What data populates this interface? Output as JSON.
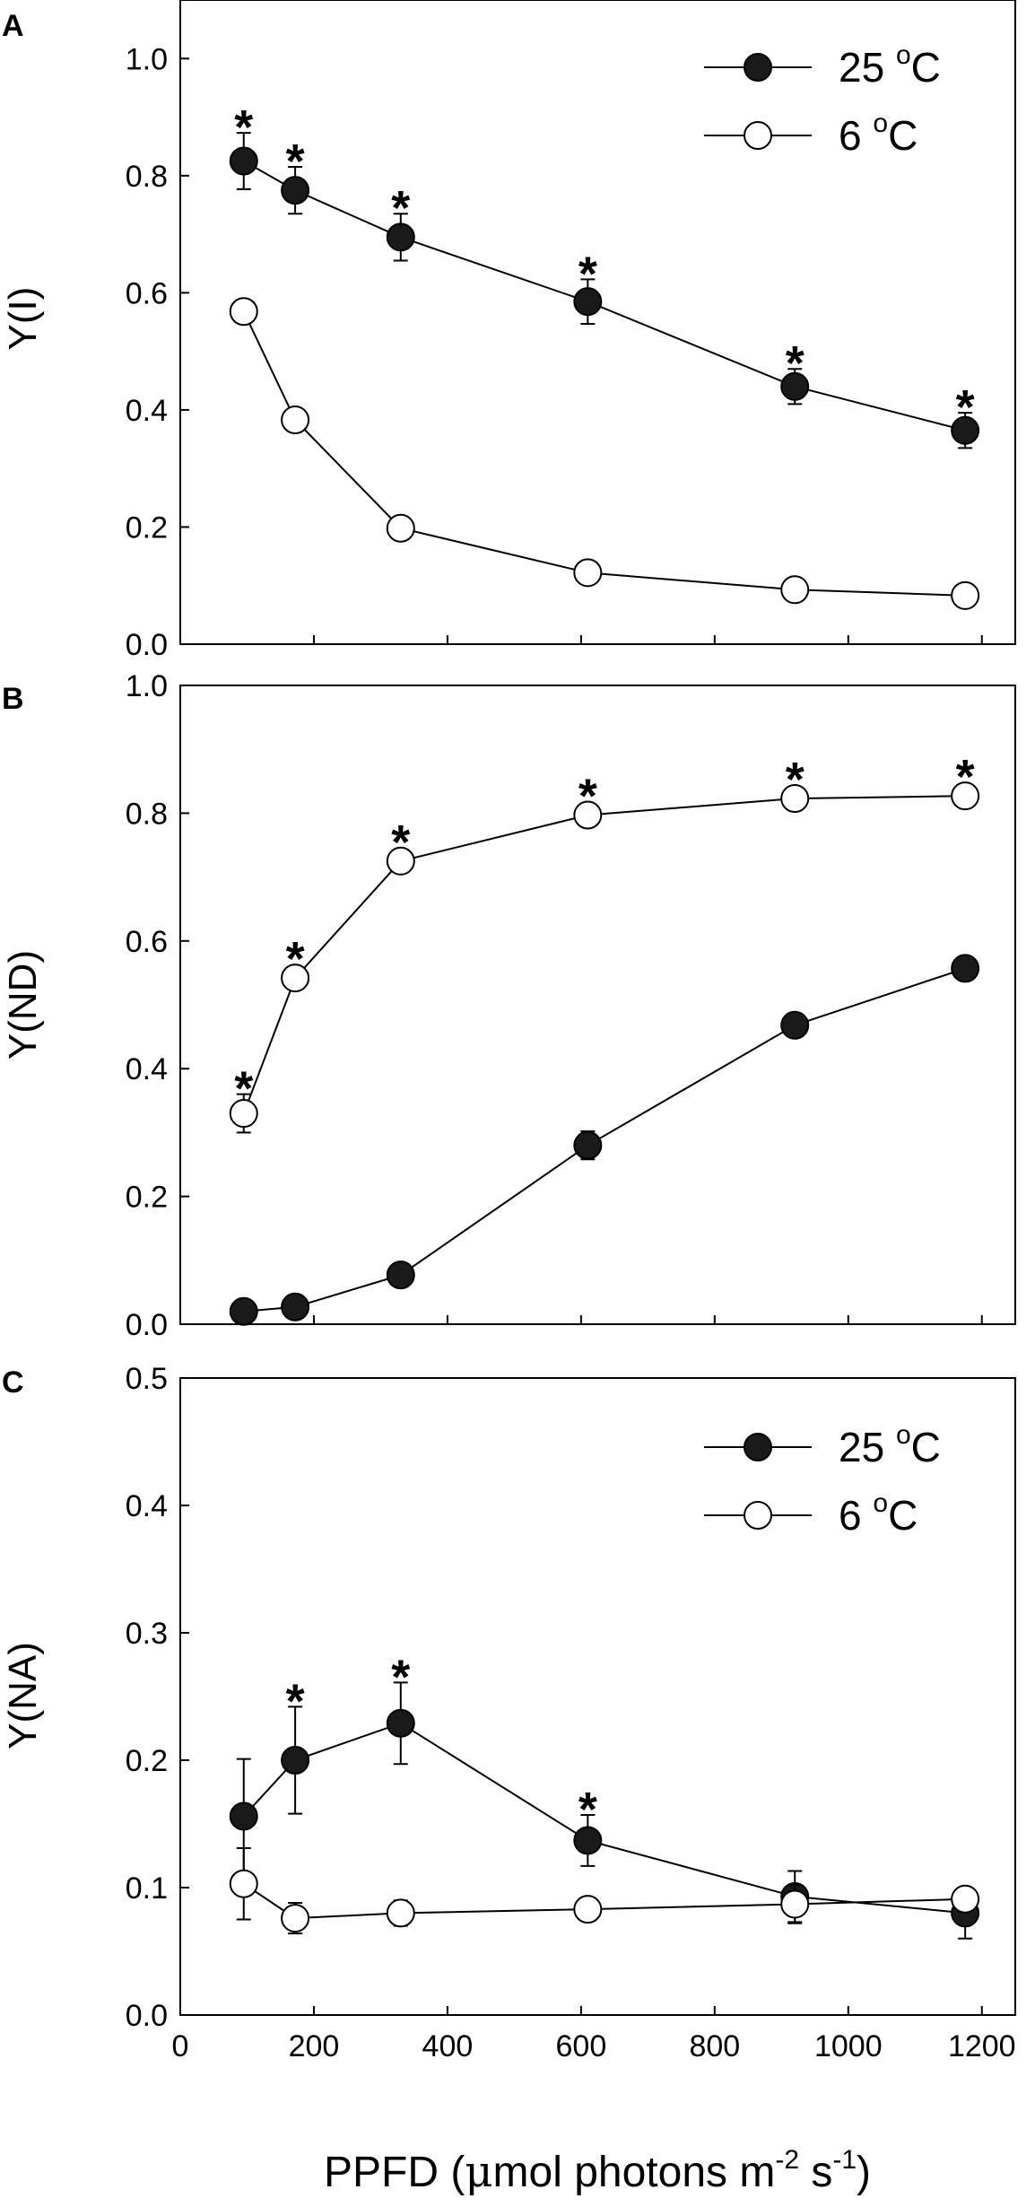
{
  "figure": {
    "xlabel_main": "PPFD (",
    "xlabel_mu": "μ",
    "xlabel_mid": "mol photons m",
    "xlabel_sup1": "-2",
    "xlabel_s": " s",
    "xlabel_sup2": "-1",
    "xlabel_close": ")",
    "xticks": [
      "0",
      "200",
      "400",
      "600",
      "800",
      "1000",
      "1200"
    ]
  },
  "chart_data": [
    {
      "type": "line",
      "panel_label": "A",
      "ylabel": "Y(I)",
      "xlim": [
        0,
        1250
      ],
      "ylim": [
        0,
        1.1
      ],
      "yticks": [
        "0.0",
        "0.2",
        "0.4",
        "0.6",
        "0.8",
        "1.0"
      ],
      "legend": {
        "placement": "top-right",
        "entries": [
          {
            "text": "25 ",
            "sup": "o",
            "unit": "C",
            "marker": "filled"
          },
          {
            "text": "6 ",
            "sup": "o",
            "unit": "C",
            "marker": "open"
          }
        ]
      },
      "x": [
        95,
        172,
        330,
        610,
        920,
        1175
      ],
      "series": [
        {
          "name": "25 °C",
          "marker": "filled",
          "values": [
            0.825,
            0.775,
            0.695,
            0.585,
            0.44,
            0.365
          ],
          "errors": [
            0.048,
            0.04,
            0.04,
            0.038,
            0.03,
            0.03
          ],
          "significant": [
            true,
            true,
            true,
            true,
            true,
            true
          ]
        },
        {
          "name": "6 °C",
          "marker": "open",
          "values": [
            0.568,
            0.383,
            0.198,
            0.122,
            0.093,
            0.083
          ],
          "errors": [
            0,
            0,
            0,
            0,
            0,
            0
          ]
        }
      ]
    },
    {
      "type": "line",
      "panel_label": "B",
      "ylabel": "Y(ND)",
      "xlim": [
        0,
        1250
      ],
      "ylim": [
        0,
        1.0
      ],
      "yticks": [
        "0.0",
        "0.2",
        "0.4",
        "0.6",
        "0.8",
        "1.0"
      ],
      "x": [
        95,
        172,
        330,
        610,
        920,
        1175
      ],
      "series": [
        {
          "name": "25 °C",
          "marker": "filled",
          "values": [
            0.02,
            0.027,
            0.077,
            0.28,
            0.468,
            0.557
          ],
          "errors": [
            0,
            0,
            0,
            0.022,
            0.015,
            0.015
          ]
        },
        {
          "name": "6 °C",
          "marker": "open",
          "values": [
            0.33,
            0.542,
            0.725,
            0.797,
            0.823,
            0.827
          ],
          "errors": [
            0.03,
            0,
            0,
            0,
            0,
            0
          ],
          "significant": [
            true,
            true,
            true,
            true,
            true,
            true
          ]
        }
      ]
    },
    {
      "type": "line",
      "panel_label": "C",
      "ylabel": "Y(NA)",
      "xlim": [
        0,
        1250
      ],
      "ylim": [
        0,
        0.5
      ],
      "yticks": [
        "0.0",
        "0.1",
        "0.2",
        "0.3",
        "0.4",
        "0.5"
      ],
      "legend": {
        "placement": "top-right",
        "entries": [
          {
            "text": "25 ",
            "sup": "o",
            "unit": "C",
            "marker": "filled"
          },
          {
            "text": "6 ",
            "sup": "o",
            "unit": "C",
            "marker": "open"
          }
        ]
      },
      "x": [
        95,
        172,
        330,
        610,
        920,
        1175
      ],
      "series": [
        {
          "name": "25 °C",
          "marker": "filled",
          "values": [
            0.156,
            0.2,
            0.229,
            0.137,
            0.093,
            0.08
          ],
          "errors": [
            0.045,
            0.042,
            0.032,
            0.02,
            0.02,
            0.02
          ],
          "significant": [
            false,
            true,
            true,
            true,
            false,
            false
          ]
        },
        {
          "name": "6 °C",
          "marker": "open",
          "values": [
            0.103,
            0.076,
            0.08,
            0.083,
            0.087,
            0.091
          ],
          "errors": [
            0.028,
            0.012,
            0.01,
            0,
            0.015,
            0
          ]
        }
      ]
    }
  ]
}
